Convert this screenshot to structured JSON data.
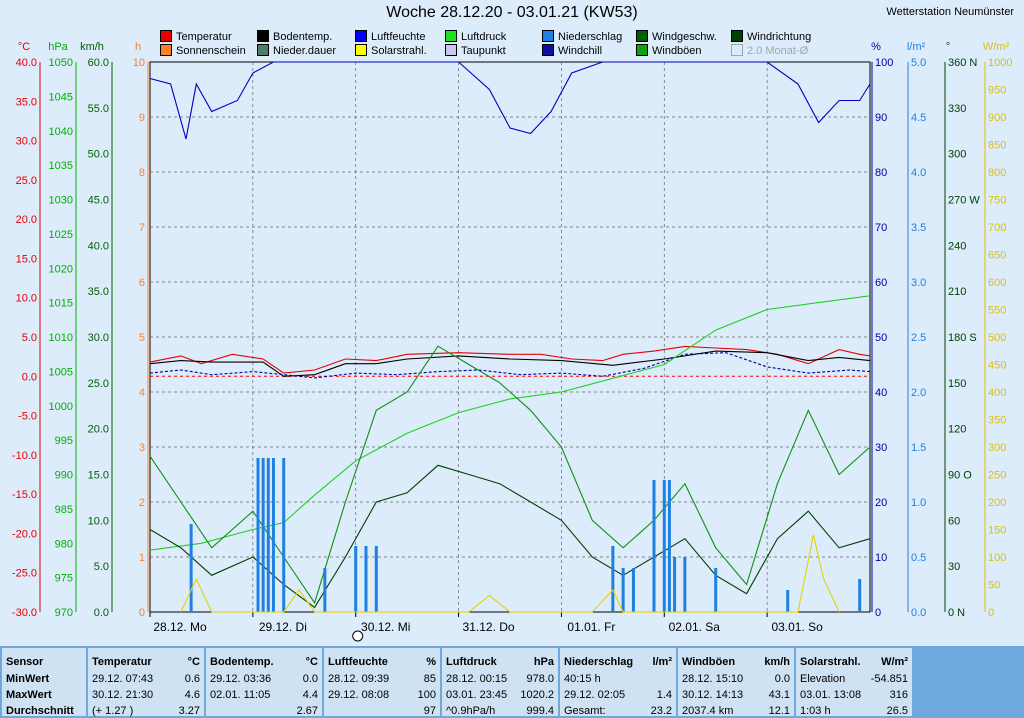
{
  "title": "Woche 28.12.20 - 03.01.21 (KW53)",
  "station": "Wetterstation Neumünster",
  "legend": [
    {
      "label": "Temperatur",
      "color": "#e60000"
    },
    {
      "label": "Sonnenschein",
      "color": "#ff7f27"
    },
    {
      "label": "Bodentemp.",
      "color": "#000000"
    },
    {
      "label": "Nieder.dauer",
      "color": "#4e7c6a"
    },
    {
      "label": "Luftfeuchte",
      "color": "#0000ff"
    },
    {
      "label": "Solarstrahl.",
      "color": "#ffff00"
    },
    {
      "label": "Luftdruck",
      "color": "#20e020"
    },
    {
      "label": "Taupunkt",
      "color": "#c8c8f0"
    },
    {
      "label": "Niederschlag",
      "color": "#2080e0"
    },
    {
      "label": "Windchill",
      "color": "#1010a0"
    },
    {
      "label": "Windgeschw.",
      "color": "#006000"
    },
    {
      "label": "Windböen",
      "color": "#10a010"
    },
    {
      "label": "Windrichtung",
      "color": "#004000"
    },
    {
      "label": "2.0 Monat-Ø",
      "color": "#aaaaaa",
      "dim": true
    }
  ],
  "axes": {
    "temp": {
      "unit": "°C",
      "color": "#e60000",
      "ticks": [
        "40.0",
        "35.0",
        "30.0",
        "25.0",
        "20.0",
        "15.0",
        "10.0",
        "5.0",
        "0.0",
        "-5.0",
        "-10.0",
        "-15.0",
        "-20.0",
        "-25.0",
        "-30.0"
      ]
    },
    "pressure": {
      "unit": "hPa",
      "color": "#00b000",
      "ticks": [
        "1050",
        "1045",
        "1040",
        "1035",
        "1030",
        "1025",
        "1020",
        "1015",
        "1010",
        "1005",
        "1000",
        "995",
        "990",
        "985",
        "980",
        "975",
        "970"
      ]
    },
    "wind": {
      "unit": "km/h",
      "color": "#006000",
      "ticks": [
        "60.0",
        "55.0",
        "50.0",
        "45.0",
        "40.0",
        "35.0",
        "30.0",
        "25.0",
        "20.0",
        "15.0",
        "10.0",
        "5.0",
        "0.0"
      ]
    },
    "hours": {
      "unit": "h",
      "color": "#ff7f27",
      "ticks": [
        "10",
        "9",
        "8",
        "7",
        "6",
        "5",
        "4",
        "3",
        "2",
        "1",
        "0"
      ]
    },
    "humidity": {
      "unit": "%",
      "color": "#0000a0",
      "ticks": [
        "100",
        "90",
        "80",
        "70",
        "60",
        "50",
        "40",
        "30",
        "20",
        "10",
        "0"
      ]
    },
    "rain": {
      "unit": "l/m²",
      "color": "#2080e0",
      "ticks": [
        "5.0",
        "4.5",
        "4.0",
        "3.5",
        "3.0",
        "2.5",
        "2.0",
        "1.5",
        "1.0",
        "0.5",
        "0.0"
      ]
    },
    "dir": {
      "unit": "°",
      "color": "#004000",
      "ticks": [
        "360 N",
        "330",
        "300",
        "270 W",
        "240",
        "210",
        "180 S",
        "150",
        "120",
        "90 O",
        "60",
        "30",
        "0 N"
      ]
    },
    "solar": {
      "unit": "W/m²",
      "color": "#e0c000",
      "ticks": [
        "1000",
        "950",
        "900",
        "850",
        "800",
        "750",
        "700",
        "650",
        "600",
        "550",
        "500",
        "450",
        "400",
        "350",
        "300",
        "250",
        "200",
        "150",
        "100",
        "50",
        "0"
      ]
    }
  },
  "chart_data": {
    "type": "line",
    "title": "Woche 28.12.20 - 03.01.21 (KW53)",
    "x_labels": [
      "28.12. Mo",
      "29.12. Di",
      "30.12. Mi",
      "31.12. Do",
      "01.01. Fr",
      "02.01. Sa",
      "03.01. So"
    ],
    "x_range_days": [
      0,
      7
    ],
    "series": [
      {
        "name": "Temperatur",
        "unit": "°C",
        "x": [
          0,
          0.3,
          0.5,
          0.8,
          1.1,
          1.3,
          1.6,
          1.9,
          2.2,
          2.5,
          3,
          3.5,
          3.8,
          4.1,
          4.4,
          4.6,
          4.9,
          5.2,
          5.5,
          5.8,
          6.1,
          6.4,
          6.7,
          6.9,
          7
        ],
        "y": [
          1.8,
          2.6,
          1.6,
          2.8,
          2.2,
          0.4,
          0.8,
          2.2,
          2.0,
          2.8,
          3.0,
          2.8,
          2.8,
          2.2,
          2.0,
          2.8,
          3.2,
          3.8,
          3.6,
          3.4,
          2.8,
          1.6,
          3.4,
          2.8,
          2.6
        ]
      },
      {
        "name": "Bodentemp.",
        "unit": "°C",
        "x": [
          0,
          0.3,
          0.6,
          1.1,
          1.3,
          1.6,
          1.9,
          2.2,
          2.5,
          3,
          3.5,
          4,
          4.5,
          5,
          5.5,
          6,
          6.4,
          6.7,
          7
        ],
        "y": [
          1.6,
          2.0,
          1.8,
          1.8,
          0.0,
          0.2,
          1.6,
          1.6,
          2.2,
          2.6,
          2.2,
          2.0,
          1.4,
          2.2,
          3.2,
          3.0,
          2.0,
          2.4,
          2.0
        ]
      },
      {
        "name": "Taupunkt",
        "unit": "°C",
        "x": [
          0,
          0.3,
          0.6,
          1.0,
          1.3,
          1.6,
          2,
          2.4,
          2.8,
          3.2,
          3.6,
          4,
          4.4,
          4.8,
          5.2,
          5.6,
          6,
          6.4,
          6.8,
          7
        ],
        "y": [
          0.4,
          0.8,
          0.2,
          0.6,
          0.2,
          -0.2,
          0.4,
          0.2,
          0.6,
          0.8,
          0.2,
          0.4,
          0.0,
          1.0,
          2.8,
          3.0,
          1.2,
          0.4,
          0.8,
          0.6
        ]
      },
      {
        "name": "Luftfeuchte",
        "unit": "%",
        "x": [
          0,
          0.2,
          0.35,
          0.45,
          0.6,
          0.85,
          1.0,
          1.2,
          1.5,
          2,
          2.5,
          3,
          3.3,
          3.5,
          3.7,
          3.9,
          4.1,
          4.4,
          4.6,
          5,
          5.5,
          6,
          6.3,
          6.5,
          6.7,
          6.9,
          7
        ],
        "y": [
          97,
          96,
          86,
          96,
          91,
          93,
          98,
          100,
          100,
          100,
          100,
          100,
          95,
          88,
          87,
          91,
          98,
          100,
          100,
          100,
          100,
          100,
          96,
          89,
          93,
          93,
          96
        ]
      },
      {
        "name": "Luftdruck",
        "unit": "hPa",
        "x": [
          0,
          0.5,
          1,
          1.3,
          1.6,
          2,
          2.5,
          3,
          3.5,
          4,
          4.5,
          5,
          5.5,
          6,
          6.5,
          7
        ],
        "y": [
          979,
          980,
          982,
          983,
          987,
          992,
          996,
          999,
          1001,
          1002,
          1004,
          1006,
          1011,
          1014,
          1015,
          1016
        ]
      },
      {
        "name": "Windgeschw.",
        "unit": "km/h",
        "x": [
          0,
          0.3,
          0.6,
          1,
          1.3,
          1.6,
          1.9,
          2.2,
          2.5,
          2.8,
          3.1,
          3.4,
          3.7,
          4,
          4.3,
          4.6,
          4.9,
          5.2,
          5.5,
          5.8,
          6.1,
          6.4,
          6.7,
          7
        ],
        "y": [
          9,
          7,
          4,
          6,
          3,
          0.5,
          6,
          12,
          13,
          16,
          15,
          14,
          12,
          10,
          6,
          4,
          6,
          8,
          4,
          2,
          8,
          11,
          7,
          8
        ]
      },
      {
        "name": "Windböen",
        "unit": "km/h",
        "x": [
          0,
          0.3,
          0.6,
          1,
          1.3,
          1.6,
          1.9,
          2.2,
          2.5,
          2.8,
          3.1,
          3.4,
          3.7,
          4,
          4.3,
          4.6,
          4.9,
          5.2,
          5.5,
          5.8,
          6.1,
          6.4,
          6.7,
          7
        ],
        "y": [
          17,
          12,
          7,
          11,
          6,
          1,
          12,
          22,
          24,
          29,
          27,
          25,
          22,
          18,
          10,
          7,
          10,
          14,
          7,
          3,
          14,
          22,
          15,
          18
        ]
      },
      {
        "name": "Niederschlag",
        "unit": "l/m²",
        "type": "bar",
        "x": [
          0.4,
          1.05,
          1.1,
          1.15,
          1.2,
          1.3,
          1.7,
          2,
          2.1,
          2.2,
          4.5,
          4.6,
          4.7,
          4.9,
          5,
          5.05,
          5.1,
          5.2,
          5.5,
          6.2,
          6.9
        ],
        "y": [
          0.8,
          1.4,
          1.4,
          1.4,
          1.4,
          1.4,
          0.4,
          0.6,
          0.6,
          0.6,
          0.6,
          0.4,
          0.4,
          1.2,
          1.2,
          1.2,
          0.5,
          0.5,
          0.4,
          0.2,
          0.3
        ]
      },
      {
        "name": "Solarstrahl.",
        "unit": "W/m²",
        "x": [
          0.3,
          0.45,
          0.6,
          1.3,
          1.45,
          1.6,
          3.1,
          3.3,
          3.5,
          4.3,
          4.5,
          4.6,
          6.3,
          6.45,
          6.55,
          6.7
        ],
        "y": [
          0,
          60,
          0,
          0,
          40,
          0,
          0,
          30,
          0,
          0,
          40,
          0,
          0,
          140,
          60,
          0
        ]
      }
    ],
    "ylim_temp": [
      -30,
      40
    ],
    "ylim_pressure": [
      970,
      1050
    ],
    "ylim_wind": [
      0,
      60
    ],
    "ylim_humidity": [
      0,
      100
    ],
    "ylim_rain": [
      0,
      5
    ],
    "ylim_dir": [
      0,
      360
    ],
    "ylim_solar": [
      0,
      1000
    ],
    "grid": true
  },
  "stats": {
    "sensor": [
      "Sensor",
      "MinWert",
      "MaxWert",
      "Durchschnitt"
    ],
    "temperature": {
      "title": "Temperatur",
      "unit": "°C",
      "rows": [
        [
          "29.12.  07:43",
          "0.6"
        ],
        [
          "30.12.  21:30",
          "4.6"
        ],
        [
          "(+ 1.27 )",
          "3.27"
        ]
      ]
    },
    "soil": {
      "title": "Bodentemp.",
      "unit": "°C",
      "rows": [
        [
          "29.12.  03:36",
          "0.0"
        ],
        [
          "02.01.  11:05",
          "4.4"
        ],
        [
          "",
          "2.67"
        ]
      ]
    },
    "humidity": {
      "title": "Luftfeuchte",
      "unit": "%",
      "rows": [
        [
          "28.12.  09:39",
          "85"
        ],
        [
          "29.12.  08:08",
          "100"
        ],
        [
          "",
          "97"
        ]
      ]
    },
    "pressure": {
      "title": "Luftdruck",
      "unit": "hPa",
      "rows": [
        [
          "28.12.  00:15",
          "978.0"
        ],
        [
          "03.01.  23:45",
          "1020.2"
        ],
        [
          "^0.9hPa/h",
          "999.4"
        ]
      ]
    },
    "rain": {
      "title": "Niederschlag",
      "unit": "l/m²",
      "rows": [
        [
          "40:15 h",
          ""
        ],
        [
          "29.12.  02:05",
          "1.4"
        ],
        [
          "Gesamt:",
          "23.2"
        ]
      ]
    },
    "gust": {
      "title": "Windböen",
      "unit": "km/h",
      "rows": [
        [
          "28.12.  15:10",
          "0.0"
        ],
        [
          "30.12.  14:13",
          "43.1"
        ],
        [
          "2037.4 km",
          "12.1"
        ]
      ]
    },
    "solar": {
      "title": "Solarstrahl.",
      "unit": "W/m²",
      "rows": [
        [
          "Elevation",
          "-54.851"
        ],
        [
          "03.01.  13:08",
          "316"
        ],
        [
          "1:03 h",
          "26.5"
        ]
      ]
    }
  }
}
